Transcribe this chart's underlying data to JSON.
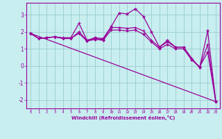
{
  "xlabel": "Windchill (Refroidissement éolien,°C)",
  "bg_color": "#c8eef0",
  "line_color": "#990099",
  "grid_color": "#99cccc",
  "xlim": [
    -0.5,
    23.5
  ],
  "ylim": [
    -2.5,
    3.7
  ],
  "yticks": [
    -2,
    -1,
    0,
    1,
    2,
    3
  ],
  "xticks": [
    0,
    1,
    2,
    3,
    4,
    5,
    6,
    7,
    8,
    9,
    10,
    11,
    12,
    13,
    14,
    15,
    16,
    17,
    18,
    19,
    20,
    21,
    22,
    23
  ],
  "line1_x": [
    0,
    1,
    2,
    3,
    4,
    5,
    6,
    7,
    8,
    9,
    10,
    11,
    12,
    13,
    14,
    15,
    16,
    17,
    18,
    19,
    20,
    21,
    22,
    23
  ],
  "line1_y": [
    1.9,
    1.6,
    1.65,
    1.7,
    1.6,
    1.6,
    2.0,
    1.5,
    1.65,
    1.6,
    2.3,
    3.1,
    3.05,
    3.35,
    2.9,
    2.0,
    1.1,
    1.5,
    1.1,
    1.1,
    0.4,
    -0.1,
    2.05,
    -2.1
  ],
  "line2_x": [
    0,
    1,
    2,
    3,
    4,
    5,
    6,
    7,
    8,
    9,
    10,
    11,
    12,
    13,
    14,
    15,
    16,
    17,
    18,
    19,
    20,
    21,
    22,
    23
  ],
  "line2_y": [
    1.9,
    1.6,
    1.65,
    1.7,
    1.65,
    1.65,
    2.5,
    1.5,
    1.6,
    1.55,
    2.25,
    2.25,
    2.2,
    2.25,
    2.05,
    1.5,
    1.1,
    1.4,
    1.1,
    1.1,
    0.45,
    -0.1,
    1.25,
    -2.1
  ],
  "line3_x": [
    0,
    23
  ],
  "line3_y": [
    1.9,
    -2.1
  ],
  "line4_x": [
    0,
    1,
    2,
    3,
    4,
    5,
    6,
    7,
    8,
    9,
    10,
    11,
    12,
    13,
    14,
    15,
    16,
    17,
    18,
    19,
    20,
    21,
    22,
    23
  ],
  "line4_y": [
    1.9,
    1.6,
    1.65,
    1.7,
    1.62,
    1.62,
    1.9,
    1.45,
    1.55,
    1.5,
    2.1,
    2.1,
    2.05,
    2.1,
    1.85,
    1.4,
    1.0,
    1.25,
    1.0,
    1.0,
    0.35,
    -0.05,
    0.8,
    -2.1
  ]
}
